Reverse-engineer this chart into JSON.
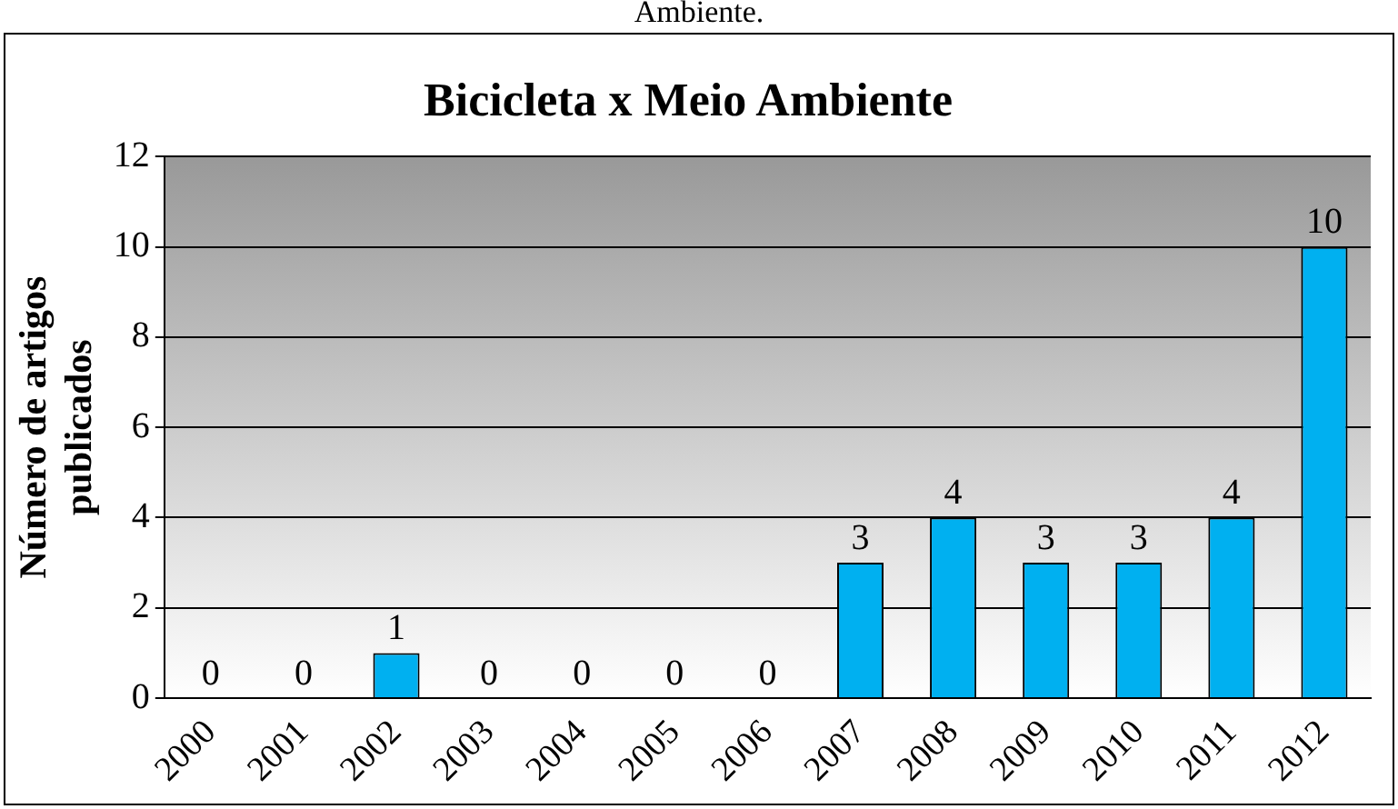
{
  "chart_data": {
    "type": "bar",
    "title": "Bicicleta x Meio Ambiente",
    "ylabel": "Número de artigos\npublicados",
    "annotations": [
      "Ambiente."
    ],
    "categories": [
      "2000",
      "2001",
      "2002",
      "2003",
      "2004",
      "2005",
      "2006",
      "2007",
      "2008",
      "2009",
      "2010",
      "2011",
      "2012"
    ],
    "values": [
      0,
      0,
      1,
      0,
      0,
      0,
      0,
      3,
      4,
      3,
      3,
      4,
      10
    ],
    "color": "#00b0f0",
    "ylim": [
      0,
      12
    ],
    "yticks": [
      0,
      2,
      4,
      6,
      8,
      10,
      12
    ],
    "grid": "y",
    "data_labels": true
  }
}
